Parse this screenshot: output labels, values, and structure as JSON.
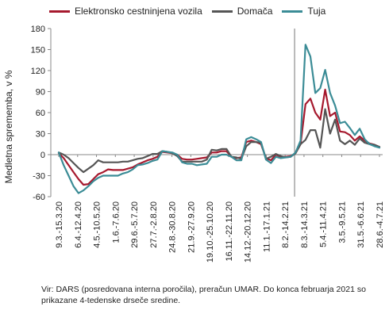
{
  "chart_data": {
    "type": "line",
    "ylabel": "Medletna sprememba, v %",
    "ylim": [
      -60,
      180
    ],
    "yticks": [
      -60,
      -30,
      0,
      30,
      60,
      90,
      120,
      150,
      180
    ],
    "grid": false,
    "legend_position": "top",
    "xtick_labels": [
      "9.3.-15.3.20",
      "6.4.-12.4.20",
      "4.5.-10.5.20",
      "1.6.-7.6.20",
      "29.6.-5.7.20",
      "27.7.-2.8.20",
      "24.8.-30.8.20",
      "21.9.-27.9.20",
      "19.10.-25.10.20",
      "16.11.-22.11.20",
      "14.12.-20.12.20",
      "11.1.-17.1.21",
      "8.2.-14.2.21",
      "8.3.-14.3.21",
      "5.4.-11.4.21",
      "3.5.-9.5.21",
      "31.5.-6.6.21",
      "28.6.-4.7.21"
    ],
    "vline_after_category": "8.2.-14.2.21",
    "series": [
      {
        "name": "Elektronsko cestninjena vozila",
        "color": "#a6192e",
        "values": [
          2,
          -5,
          -15,
          -25,
          -35,
          -43,
          -42,
          -35,
          -28,
          -25,
          -21,
          -22,
          -22,
          -22,
          -20,
          -18,
          -14,
          -11,
          -8,
          -6,
          -3,
          4,
          3,
          2,
          0,
          -6,
          -7,
          -7,
          -6,
          -5,
          -4,
          3,
          3,
          5,
          5,
          -3,
          -5,
          -4,
          18,
          20,
          18,
          15,
          -5,
          -8,
          0,
          -3,
          -3,
          -2,
          2,
          15,
          72,
          80,
          60,
          50,
          93,
          55,
          60,
          33,
          32,
          28,
          20,
          26,
          20,
          16,
          14,
          11
        ]
      },
      {
        "name": "Domača",
        "color": "#555555",
        "values": [
          3,
          0,
          -5,
          -12,
          -19,
          -25,
          -20,
          -15,
          -8,
          -11,
          -11,
          -11,
          -11,
          -10,
          -10,
          -8,
          -6,
          -5,
          -2,
          1,
          1,
          5,
          4,
          2,
          -2,
          -10,
          -10,
          -10,
          -10,
          -10,
          -7,
          7,
          6,
          8,
          8,
          -3,
          -4,
          -6,
          12,
          18,
          18,
          17,
          -6,
          -3,
          1,
          -2,
          -4,
          -3,
          2,
          15,
          21,
          35,
          35,
          10,
          65,
          30,
          50,
          20,
          15,
          20,
          14,
          23,
          17,
          15,
          14,
          11
        ]
      },
      {
        "name": "Tuja",
        "color": "#3b8c96",
        "values": [
          3,
          -15,
          -30,
          -45,
          -55,
          -51,
          -45,
          -38,
          -33,
          -30,
          -30,
          -30,
          -30,
          -27,
          -25,
          -21,
          -15,
          -14,
          -12,
          -9,
          -7,
          5,
          4,
          3,
          0,
          -11,
          -13,
          -13,
          -15,
          -14,
          -13,
          -3,
          -3,
          0,
          0,
          -3,
          -8,
          -8,
          22,
          25,
          22,
          18,
          -7,
          -12,
          -3,
          -5,
          -4,
          -3,
          3,
          20,
          157,
          140,
          88,
          95,
          121,
          88,
          70,
          45,
          47,
          38,
          28,
          37,
          22,
          15,
          12,
          10
        ]
      }
    ],
    "source_note": "Vir: DARS (posredovana interna poročila), preračun UMAR. Do konca februarja 2021 so prikazane 4-tedenske drseče sredine."
  }
}
